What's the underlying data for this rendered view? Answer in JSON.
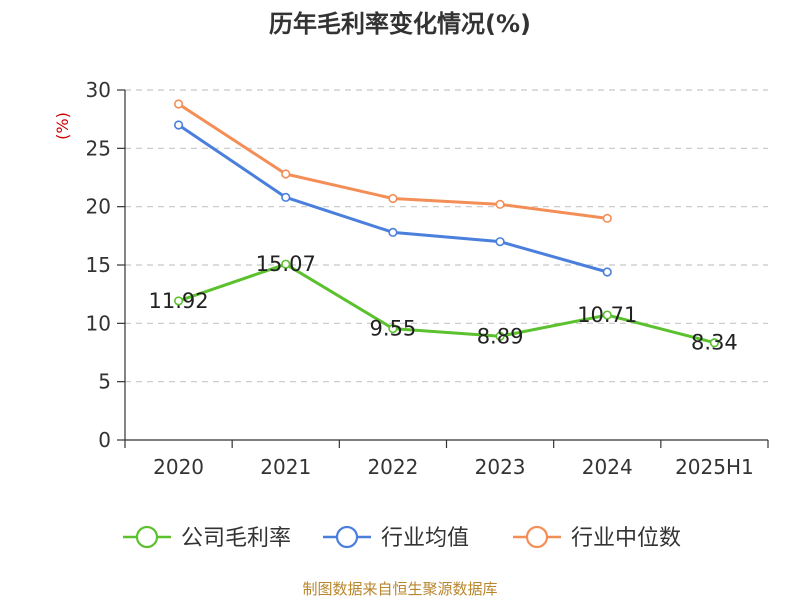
{
  "chart_data": {
    "type": "line",
    "title": "历年毛利率变化情况(%)",
    "ylabel": "(%)",
    "xlabel": "",
    "ylim": [
      0,
      30
    ],
    "yticks": [
      0,
      5,
      10,
      15,
      20,
      25,
      30
    ],
    "categories": [
      "2020",
      "2021",
      "2022",
      "2023",
      "2024",
      "2025H1"
    ],
    "grid": true,
    "legend_position": "bottom",
    "series": [
      {
        "name": "公司毛利率",
        "color": "#5cc12e",
        "values": [
          11.92,
          15.07,
          9.55,
          8.89,
          10.71,
          8.34
        ],
        "labels": [
          "11.92",
          "15.07",
          "9.55",
          "8.89",
          "10.71",
          "8.34"
        ]
      },
      {
        "name": "行业均值",
        "color": "#4a7fdc",
        "values": [
          27.0,
          20.8,
          17.8,
          17.0,
          14.4,
          null
        ]
      },
      {
        "name": "行业中位数",
        "color": "#f48e57",
        "values": [
          28.8,
          22.8,
          20.7,
          20.2,
          19.0,
          null
        ]
      }
    ]
  },
  "footer": "制图数据来自恒生聚源数据库"
}
